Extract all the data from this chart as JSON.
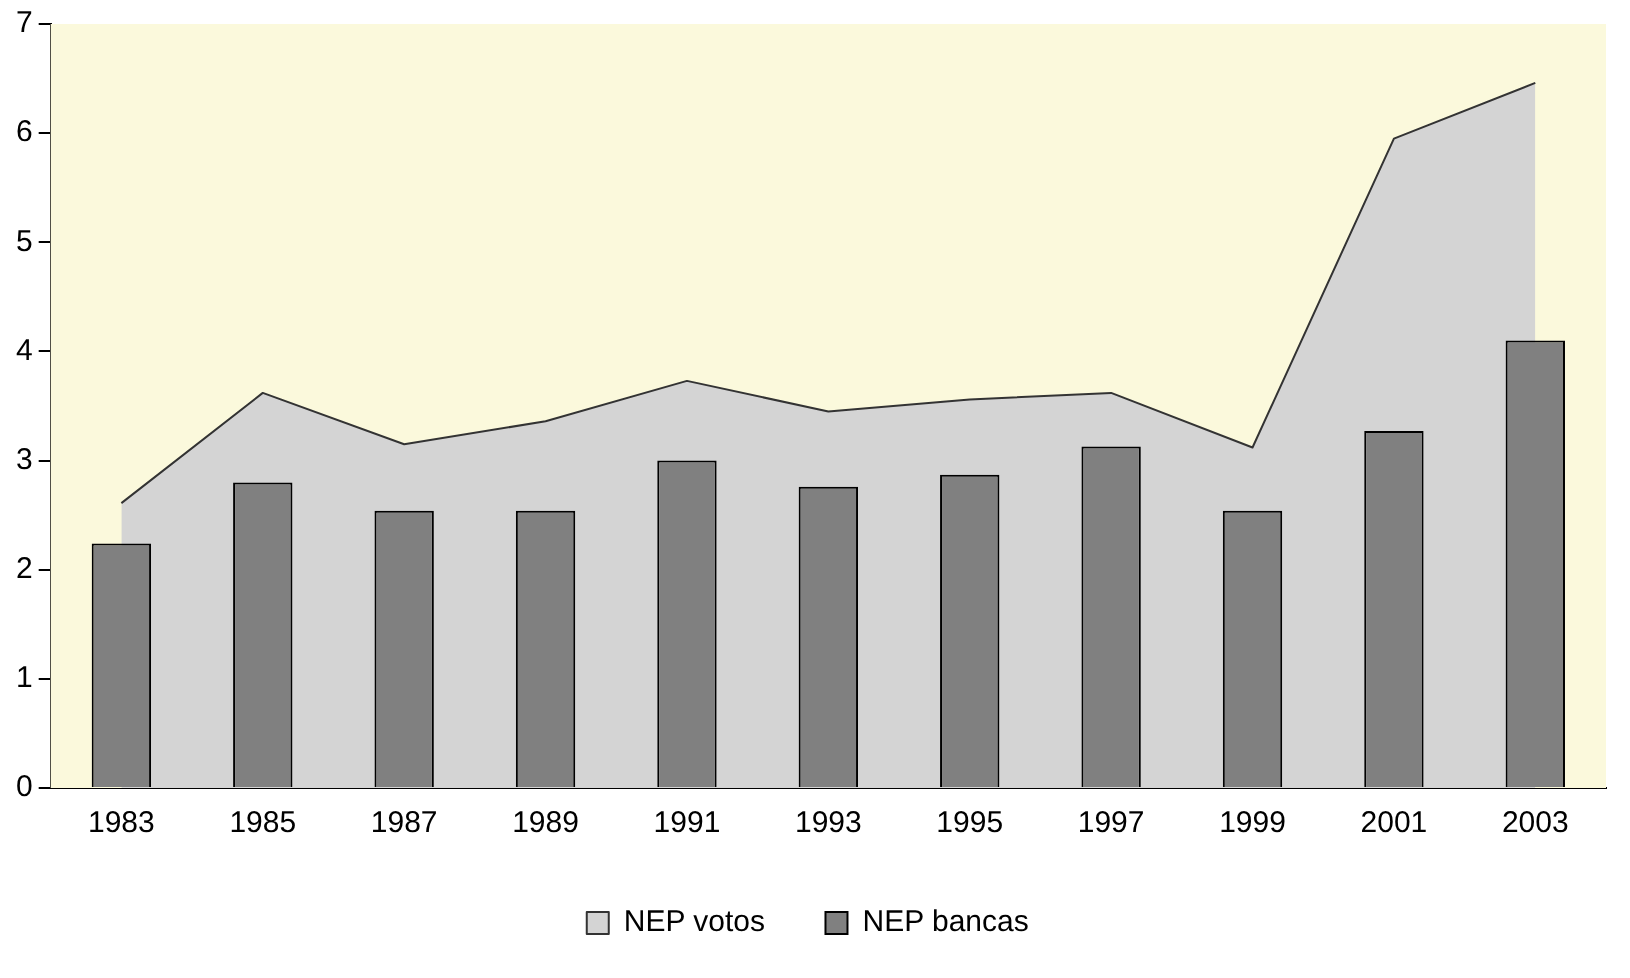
{
  "chart_data": {
    "type": "bar",
    "categories": [
      "1983",
      "1985",
      "1987",
      "1989",
      "1991",
      "1993",
      "1995",
      "1997",
      "1999",
      "2001",
      "2003"
    ],
    "series": [
      {
        "name": "NEP votos",
        "type": "area",
        "color": "#d4d4d4",
        "values": [
          2.61,
          3.62,
          3.15,
          3.36,
          3.73,
          3.45,
          3.56,
          3.62,
          3.12,
          5.95,
          6.46
        ]
      },
      {
        "name": "NEP bancas",
        "color": "#808080",
        "values": [
          2.24,
          2.8,
          2.54,
          2.54,
          3.0,
          2.76,
          2.87,
          3.13,
          2.54,
          3.27,
          4.1
        ]
      }
    ],
    "ylim": [
      0,
      7
    ],
    "yticks": [
      0,
      1,
      2,
      3,
      4,
      5,
      6,
      7
    ],
    "grid": false,
    "legend": "bottom"
  }
}
